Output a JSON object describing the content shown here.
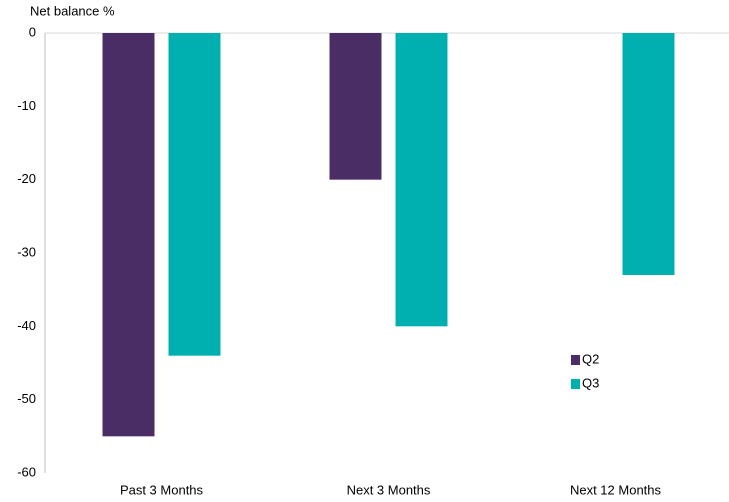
{
  "chart_data": {
    "type": "bar",
    "y_label": "Net balance %",
    "categories": [
      "Past 3 Months",
      "Next 3 Months",
      "Next 12 Months"
    ],
    "series": [
      {
        "name": "Q2",
        "color": "#4b2d66",
        "values": [
          -55,
          -20,
          null
        ]
      },
      {
        "name": "Q3",
        "color": "#00b0b0",
        "values": [
          -44,
          -40,
          -33
        ]
      }
    ],
    "ylim": [
      0,
      -60
    ],
    "yticks": [
      0,
      -10,
      -20,
      -30,
      -40,
      -50,
      -60
    ]
  }
}
